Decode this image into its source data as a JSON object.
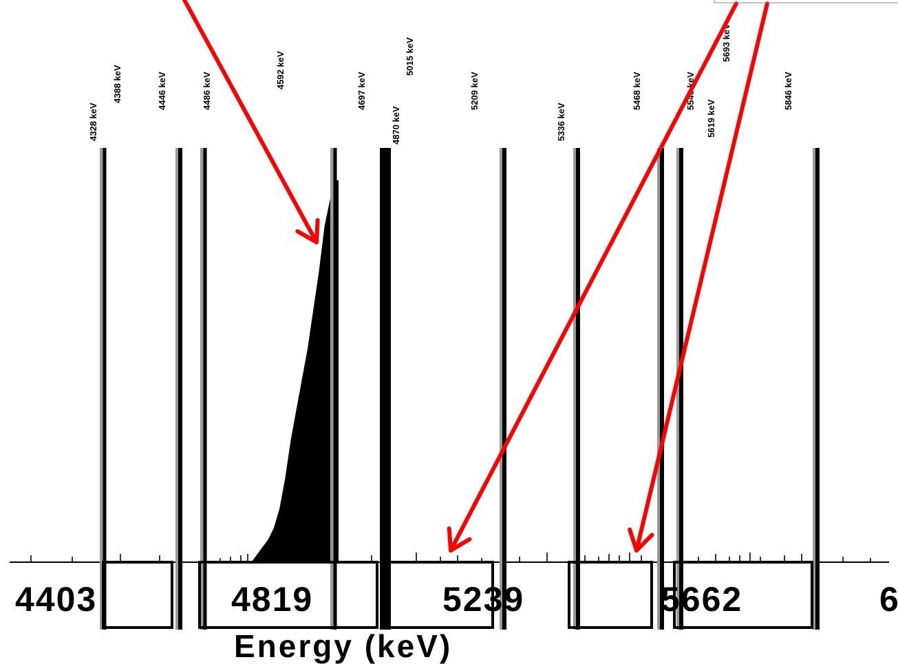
{
  "chart_data": {
    "type": "line",
    "title": "",
    "xlabel": "Energy (keV)",
    "ylabel": "",
    "x_ticks": [
      "4403",
      "4819",
      "5239",
      "5662",
      "6"
    ],
    "peak_labels": [
      "4328 keV",
      "4388 keV",
      "4446 keV",
      "4486 keV",
      "4592 keV",
      "4697 keV",
      "4870 keV",
      "5015 keV",
      "5209 keV",
      "5336 keV",
      "5468 keV",
      "5540 keV",
      "5619 keV",
      "5693 keV",
      "5846 keV"
    ],
    "spectrum": {
      "x": [
        4400,
        4420,
        4440,
        4460,
        4480,
        4500,
        4520,
        4540,
        4560,
        4580,
        4600,
        4620,
        4640,
        4660,
        4680,
        4700,
        4720,
        4740,
        4760,
        4780,
        4800,
        4820,
        4840,
        4860,
        4870
      ],
      "y": [
        0,
        0,
        0,
        0,
        0,
        0,
        0,
        0,
        0,
        2,
        4,
        6,
        9,
        14,
        22,
        32,
        40,
        48,
        56,
        66,
        76,
        88,
        95,
        100,
        100
      ]
    },
    "annotation_arrows": 3,
    "grid": false
  }
}
